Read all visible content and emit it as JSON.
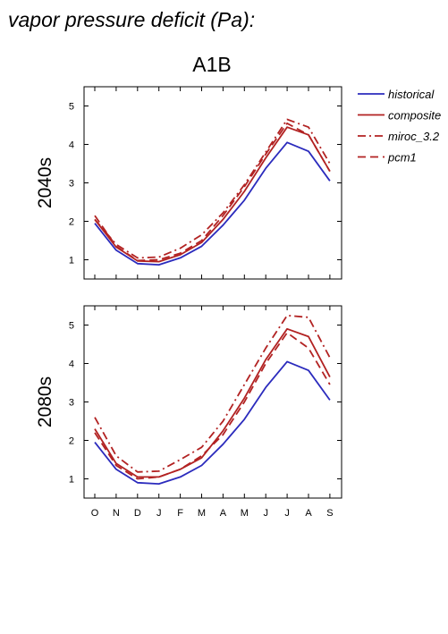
{
  "figure": {
    "title": "vapor pressure deficit (Pa):",
    "scenario": "A1B"
  },
  "colors": {
    "historical": "#2b2bbd",
    "models": "#b22222"
  },
  "chart_data": [
    {
      "type": "line",
      "row_label": "2040s",
      "categories": [
        "O",
        "N",
        "D",
        "J",
        "F",
        "M",
        "A",
        "M",
        "J",
        "J",
        "A",
        "S"
      ],
      "ylim": [
        0.5,
        5.5
      ],
      "yticks": [
        1,
        2,
        3,
        4,
        5
      ],
      "grid": false,
      "legend": "right-outside",
      "series": [
        {
          "name": "historical",
          "style": "solid",
          "color": "#2b2bbd",
          "values": [
            1.95,
            1.25,
            0.9,
            0.87,
            1.05,
            1.35,
            1.9,
            2.55,
            3.38,
            4.05,
            3.82,
            3.05
          ]
        },
        {
          "name": "composite",
          "style": "solid",
          "color": "#b22222",
          "values": [
            2.05,
            1.33,
            0.97,
            0.95,
            1.13,
            1.45,
            2.05,
            2.78,
            3.65,
            4.45,
            4.25,
            3.3
          ]
        },
        {
          "name": "miroc_3.2",
          "style": "dashdot",
          "color": "#b22222",
          "values": [
            2.05,
            1.4,
            1.05,
            1.07,
            1.3,
            1.65,
            2.22,
            2.95,
            3.8,
            4.65,
            4.45,
            3.5
          ]
        },
        {
          "name": "pcm1",
          "style": "dashed",
          "color": "#b22222",
          "values": [
            2.15,
            1.35,
            0.98,
            1.0,
            1.17,
            1.5,
            2.15,
            2.9,
            3.75,
            4.55,
            4.25,
            3.3
          ]
        }
      ]
    },
    {
      "type": "line",
      "row_label": "2080s",
      "categories": [
        "O",
        "N",
        "D",
        "J",
        "F",
        "M",
        "A",
        "M",
        "J",
        "J",
        "A",
        "S"
      ],
      "ylim": [
        0.5,
        5.5
      ],
      "yticks": [
        1,
        2,
        3,
        4,
        5
      ],
      "grid": false,
      "series": [
        {
          "name": "historical",
          "style": "solid",
          "color": "#2b2bbd",
          "values": [
            1.95,
            1.25,
            0.9,
            0.87,
            1.05,
            1.35,
            1.9,
            2.55,
            3.38,
            4.05,
            3.82,
            3.05
          ]
        },
        {
          "name": "composite",
          "style": "solid",
          "color": "#b22222",
          "values": [
            2.3,
            1.4,
            1.05,
            1.05,
            1.25,
            1.55,
            2.25,
            3.1,
            4.1,
            4.9,
            4.7,
            3.65
          ]
        },
        {
          "name": "miroc_3.2",
          "style": "dashdot",
          "color": "#b22222",
          "values": [
            2.6,
            1.6,
            1.18,
            1.2,
            1.5,
            1.82,
            2.5,
            3.45,
            4.4,
            5.25,
            5.2,
            4.15
          ]
        },
        {
          "name": "pcm1",
          "style": "dashed",
          "color": "#b22222",
          "values": [
            2.2,
            1.35,
            1.0,
            1.05,
            1.25,
            1.6,
            2.15,
            3.0,
            4.0,
            4.8,
            4.4,
            3.45
          ]
        }
      ]
    }
  ]
}
